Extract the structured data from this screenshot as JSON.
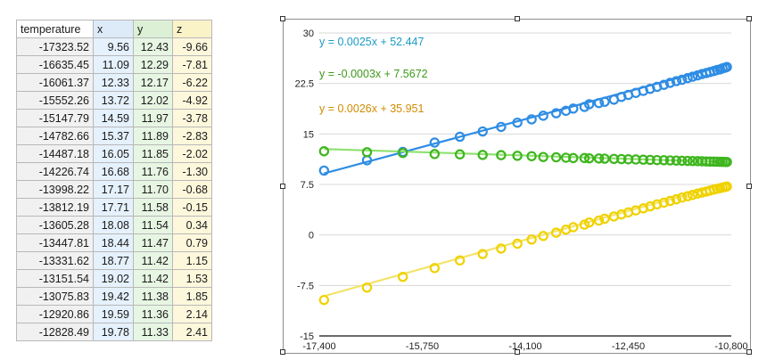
{
  "sheet": {
    "headers": [
      "temperature",
      "x",
      "y",
      "z"
    ],
    "rows": [
      [
        "-17323.52",
        "9.56",
        "12.43",
        "-9.66"
      ],
      [
        "-16635.45",
        "11.09",
        "12.29",
        "-7.81"
      ],
      [
        "-16061.37",
        "12.33",
        "12.17",
        "-6.22"
      ],
      [
        "-15552.26",
        "13.72",
        "12.02",
        "-4.92"
      ],
      [
        "-15147.79",
        "14.59",
        "11.97",
        "-3.78"
      ],
      [
        "-14782.66",
        "15.37",
        "11.89",
        "-2.83"
      ],
      [
        "-14487.18",
        "16.05",
        "11.85",
        "-2.02"
      ],
      [
        "-14226.74",
        "16.68",
        "11.76",
        "-1.30"
      ],
      [
        "-13998.22",
        "17.17",
        "11.70",
        "-0.68"
      ],
      [
        "-13812.19",
        "17.71",
        "11.58",
        "-0.15"
      ],
      [
        "-13605.28",
        "18.08",
        "11.54",
        "0.34"
      ],
      [
        "-13447.81",
        "18.44",
        "11.47",
        "0.79"
      ],
      [
        "-13331.62",
        "18.77",
        "11.42",
        "1.15"
      ],
      [
        "-13151.54",
        "19.02",
        "11.42",
        "1.53"
      ],
      [
        "-13075.83",
        "19.42",
        "11.38",
        "1.85"
      ],
      [
        "-12920.86",
        "19.59",
        "11.36",
        "2.14"
      ],
      [
        "-12828.49",
        "19.78",
        "11.33",
        "2.41"
      ]
    ]
  },
  "colors": {
    "x": "#2f8de4",
    "y": "#3fb51f",
    "z": "#f0d200",
    "xTrend": "#2f8de4",
    "yTrend": "#8fe070",
    "zTrend": "#f3e36a",
    "xEq": "#1a9bc4",
    "yEq": "#3c9a1a",
    "zEq": "#d08c00"
  },
  "chart_data": {
    "type": "scatter",
    "xlim": [
      -17400,
      -10800
    ],
    "ylim": [
      -15,
      30
    ],
    "xticks": [
      "-17,400",
      "-15,750",
      "-14,100",
      "-12,450",
      "-10,800"
    ],
    "yticks": [
      "30",
      "22.5",
      "15",
      "7.5",
      "0",
      "-7.5",
      "-15"
    ],
    "grid": "horizontal",
    "series": [
      {
        "key": "x",
        "trend": {
          "slope": 0.0025,
          "intercept": 52.447,
          "label": "y = 0.0025x + 52.447"
        }
      },
      {
        "key": "y",
        "trend": {
          "slope": -0.0003,
          "intercept": 7.5672,
          "label": "y = -0.0003x + 7.5672"
        }
      },
      {
        "key": "z",
        "trend": {
          "slope": 0.0026,
          "intercept": 35.951,
          "label": "y = 0.0026x + 35.951"
        }
      }
    ],
    "x": [
      -17323.52,
      -16635.45,
      -16061.37,
      -15552.26,
      -15147.79,
      -14782.66,
      -14487.18,
      -14226.74,
      -13998.22,
      -13812.19,
      -13605.28,
      -13447.81,
      -13331.62,
      -13151.54,
      -13075.83,
      -12920.86,
      -12828.49,
      -12680,
      -12560,
      -12450,
      -12330,
      -12210,
      -12100,
      -11990,
      -11880,
      -11780,
      -11680,
      -11590,
      -11500,
      -11420,
      -11340,
      -11270,
      -11200,
      -11140,
      -11080,
      -11030,
      -10980,
      -10940,
      -10900,
      -10870
    ],
    "values": {
      "x": [
        9.56,
        11.09,
        12.33,
        13.72,
        14.59,
        15.37,
        16.05,
        16.68,
        17.17,
        17.71,
        18.08,
        18.44,
        18.77,
        19.02,
        19.42,
        19.59,
        19.78,
        20.1,
        20.5,
        20.8,
        21.1,
        21.4,
        21.7,
        22.0,
        22.3,
        22.6,
        22.85,
        23.05,
        23.3,
        23.5,
        23.7,
        23.9,
        24.05,
        24.2,
        24.35,
        24.5,
        24.6,
        24.75,
        24.85,
        24.95
      ],
      "y": [
        12.43,
        12.29,
        12.17,
        12.02,
        11.97,
        11.89,
        11.85,
        11.76,
        11.7,
        11.58,
        11.54,
        11.47,
        11.42,
        11.42,
        11.38,
        11.36,
        11.33,
        11.3,
        11.27,
        11.24,
        11.21,
        11.18,
        11.15,
        11.12,
        11.1,
        11.07,
        11.05,
        11.02,
        11.0,
        10.98,
        10.96,
        10.94,
        10.92,
        10.9,
        10.89,
        10.88,
        10.87,
        10.86,
        10.85,
        10.84
      ],
      "z": [
        -9.66,
        -7.81,
        -6.22,
        -4.92,
        -3.78,
        -2.83,
        -2.02,
        -1.3,
        -0.68,
        -0.15,
        0.34,
        0.79,
        1.15,
        1.53,
        1.85,
        2.14,
        2.41,
        2.75,
        3.05,
        3.35,
        3.65,
        3.95,
        4.25,
        4.55,
        4.8,
        5.05,
        5.3,
        5.55,
        5.75,
        5.95,
        6.15,
        6.3,
        6.45,
        6.6,
        6.75,
        6.85,
        6.95,
        7.05,
        7.12,
        7.2
      ]
    }
  }
}
